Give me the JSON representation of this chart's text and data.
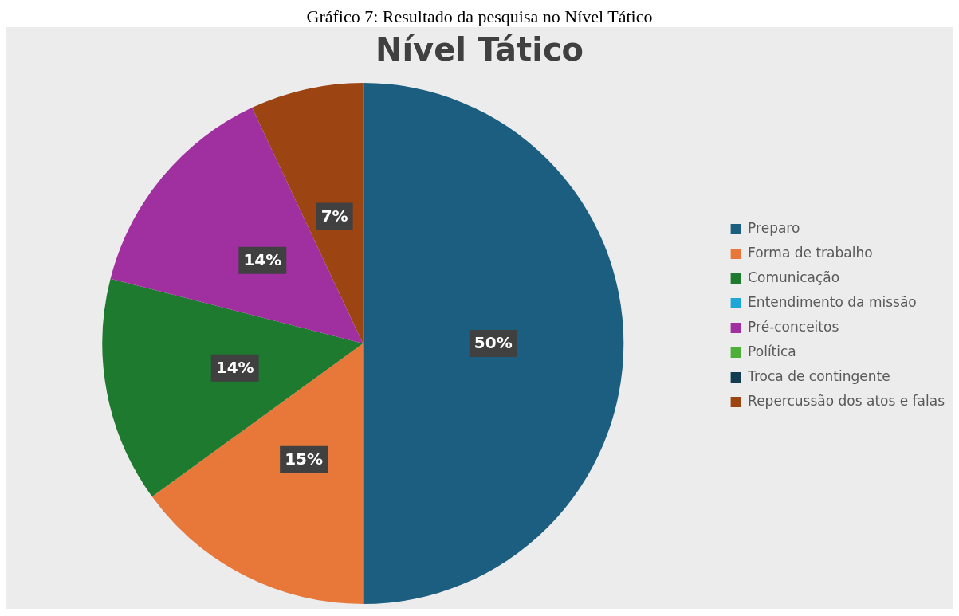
{
  "chart_data": {
    "type": "pie",
    "title": "Nível Tático",
    "annotations": [
      "Gráfico 7: Resultado da pesquisa no Nível Tático"
    ],
    "categories": [
      "Preparo",
      "Forma de trabalho",
      "Comunicação",
      "Entendimento da missão",
      "Pré-conceitos",
      "Política",
      "Troca de contingente",
      "Repercussão dos atos e falas"
    ],
    "values": [
      50,
      15,
      14,
      0,
      14,
      0,
      0,
      7
    ],
    "colors": [
      "#1b5e80",
      "#e8783a",
      "#1d7a2e",
      "#1ea7d6",
      "#a02fa0",
      "#4eae3a",
      "#123c52",
      "#9c4412"
    ],
    "value_labels": [
      "50%",
      "15%",
      "14%",
      null,
      "14%",
      null,
      null,
      "7%"
    ],
    "legend": "right"
  }
}
